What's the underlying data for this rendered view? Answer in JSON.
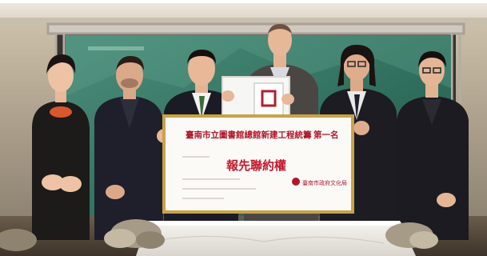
{
  "photo": {
    "sign": {
      "heading": "臺南市立圖書館總館新建工程統籌",
      "rank": "第一名",
      "subheading": "報先聯約權",
      "footer": "臺南市政府文化局"
    }
  },
  "colors": {
    "backdrop": "#2f6b5a",
    "stage_frame": "#b9b4ac",
    "ceiling": "#e9e2d6",
    "table_cloth": "#f3f0ea",
    "sign_border": "#c9a24a",
    "sign_red": "#c2182b"
  }
}
